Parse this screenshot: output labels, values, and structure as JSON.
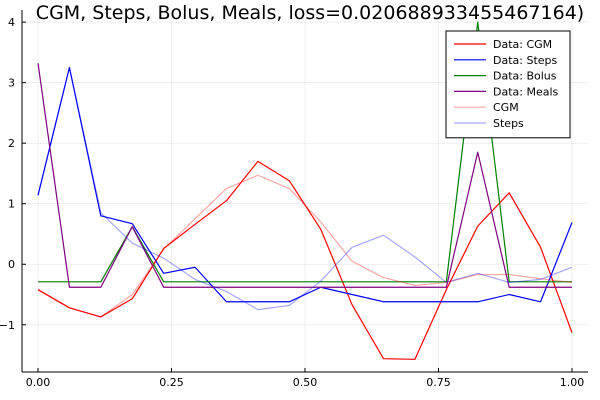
{
  "chart_data": {
    "type": "line",
    "title": "CGM, Steps, Bolus, Meals, loss=0.020688933455467164)",
    "xlabel": "",
    "ylabel": "",
    "xlim": [
      -0.03,
      1.03
    ],
    "ylim": [
      -1.78,
      4.2
    ],
    "grid": true,
    "legend_position": "top-right",
    "xticks": [
      0.0,
      0.25,
      0.5,
      0.75,
      1.0
    ],
    "xtick_labels": [
      "0.00",
      "0.25",
      "0.50",
      "0.75",
      "1.00"
    ],
    "yticks": [
      -1,
      0,
      1,
      2,
      3,
      4
    ],
    "ytick_labels": [
      "−1",
      "0",
      "1",
      "2",
      "3",
      "4"
    ],
    "x": [
      0.0,
      0.0588,
      0.1176,
      0.1765,
      0.2353,
      0.2941,
      0.3529,
      0.4118,
      0.4706,
      0.5294,
      0.5882,
      0.6471,
      0.7059,
      0.7647,
      0.8235,
      0.8824,
      0.9412,
      1.0
    ],
    "series": [
      {
        "name": "Data: CGM",
        "color": "#ff0000",
        "opacity": 1.0,
        "values": [
          -0.42,
          -0.72,
          -0.87,
          -0.57,
          0.26,
          0.66,
          1.05,
          1.7,
          1.38,
          0.58,
          -0.67,
          -1.56,
          -1.57,
          -0.42,
          0.63,
          1.18,
          0.28,
          -1.13
        ]
      },
      {
        "name": "Data: Steps",
        "color": "#0000ff",
        "opacity": 1.0,
        "values": [
          1.14,
          3.25,
          0.8,
          0.67,
          -0.15,
          -0.05,
          -0.62,
          -0.62,
          -0.62,
          -0.38,
          -0.5,
          -0.62,
          -0.62,
          -0.62,
          -0.62,
          -0.5,
          -0.62,
          0.69
        ]
      },
      {
        "name": "Data: Bolus",
        "color": "#008000",
        "opacity": 1.0,
        "values": [
          -0.29,
          -0.29,
          -0.29,
          0.62,
          -0.29,
          -0.29,
          -0.29,
          -0.29,
          -0.29,
          -0.29,
          -0.29,
          -0.29,
          -0.29,
          -0.29,
          4.0,
          -0.29,
          -0.29,
          -0.29
        ]
      },
      {
        "name": "Data: Meals",
        "color": "#800080",
        "opacity": 1.0,
        "values": [
          3.32,
          -0.38,
          -0.38,
          0.62,
          -0.38,
          -0.38,
          -0.38,
          -0.38,
          -0.38,
          -0.38,
          -0.38,
          -0.38,
          -0.38,
          -0.38,
          1.85,
          -0.38,
          -0.38,
          -0.38
        ]
      },
      {
        "name": "CGM",
        "color": "#ff0000",
        "opacity": 0.35,
        "values": [
          -0.42,
          -0.72,
          -0.87,
          -0.5,
          0.25,
          0.75,
          1.25,
          1.47,
          1.25,
          0.7,
          0.05,
          -0.22,
          -0.35,
          -0.3,
          -0.17,
          -0.17,
          -0.24,
          -0.3
        ]
      },
      {
        "name": "Steps",
        "color": "#0000ff",
        "opacity": 0.35,
        "values": [
          1.14,
          3.25,
          0.85,
          0.35,
          0.1,
          -0.25,
          -0.45,
          -0.75,
          -0.68,
          -0.28,
          0.28,
          0.48,
          0.12,
          -0.3,
          -0.15,
          -0.3,
          -0.25,
          -0.05
        ]
      }
    ]
  }
}
